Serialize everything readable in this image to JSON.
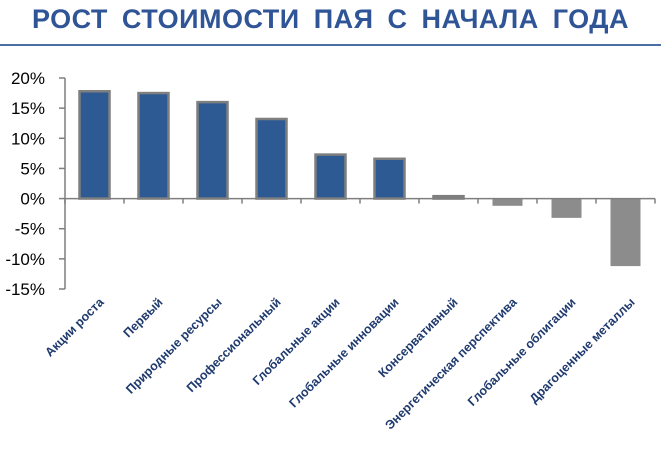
{
  "header": {
    "title": "РОСТ СТОИМОСТИ ПАЯ С НАЧАЛА ГОДА"
  },
  "colors": {
    "title": "#2f5597",
    "positive_bar": "#2e5a93",
    "positive_border": "#7f7f7f",
    "negative_bar": "#8c8c8c",
    "axis": "#7f7f7f"
  },
  "chart_data": {
    "type": "bar",
    "title": "РОСТ СТОИМОСТИ ПАЯ С НАЧАЛА ГОДА",
    "xlabel": "",
    "ylabel": "",
    "ylim": [
      -15,
      20
    ],
    "yticks": [
      20,
      15,
      10,
      5,
      0,
      -5,
      -10,
      -15
    ],
    "ytick_labels": [
      "20%",
      "15%",
      "10%",
      "5%",
      "0%",
      "-5%",
      "-10%",
      "-15%"
    ],
    "grid": false,
    "legend": "none",
    "categories": [
      "Акции роста",
      "Первый",
      "Природные ресурсы",
      "Профессиональный",
      "Глобальные акции",
      "Глобальные инновации",
      "Консервативный",
      "Энергетическая перспектива",
      "Глобальные облигации",
      "Драгоценные  металлы"
    ],
    "values": [
      17.8,
      17.5,
      16.0,
      13.2,
      7.3,
      6.6,
      0.4,
      -1.2,
      -3.2,
      -11.2
    ]
  }
}
